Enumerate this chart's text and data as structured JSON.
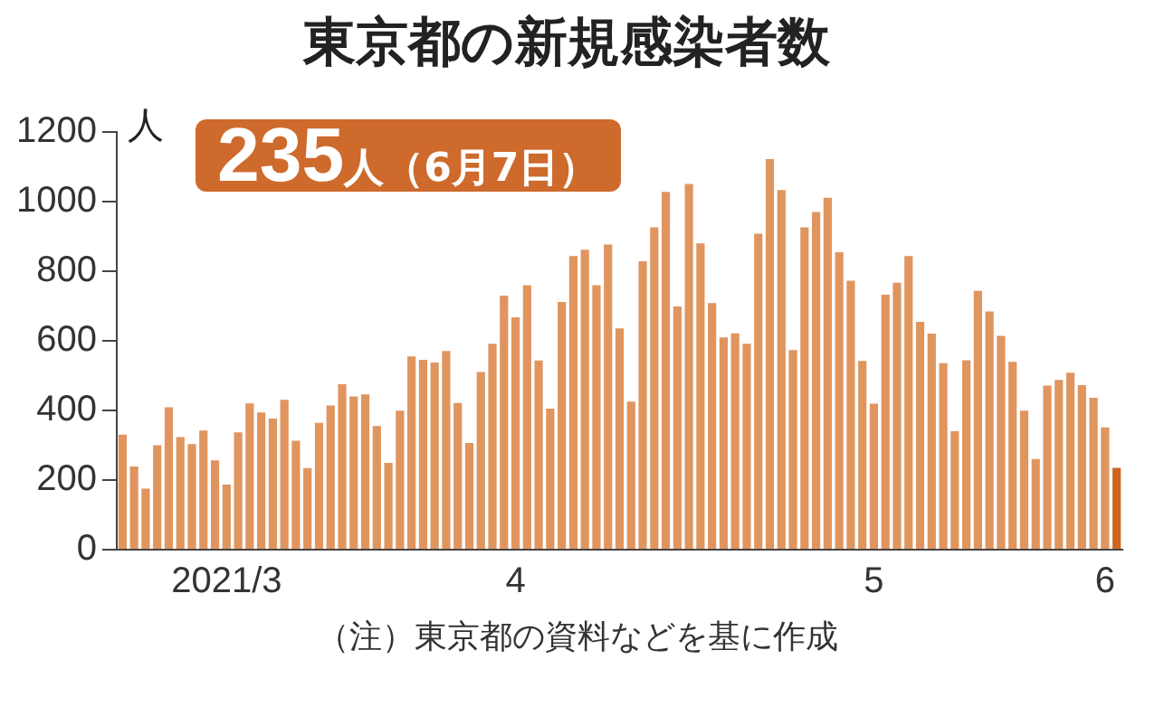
{
  "chart_data": {
    "type": "bar",
    "title": "東京都の新規感染者数",
    "ylabel": "人",
    "categories": [
      null,
      null,
      null,
      null,
      null,
      null,
      null,
      null,
      null,
      "2021/3",
      null,
      null,
      null,
      null,
      null,
      null,
      null,
      null,
      null,
      null,
      null,
      null,
      null,
      null,
      null,
      null,
      null,
      null,
      null,
      null,
      null,
      null,
      null,
      null,
      "4",
      null,
      null,
      null,
      null,
      null,
      null,
      null,
      null,
      null,
      null,
      null,
      null,
      null,
      null,
      null,
      null,
      null,
      null,
      null,
      null,
      null,
      null,
      null,
      null,
      null,
      null,
      null,
      null,
      null,
      null,
      "5",
      null,
      null,
      null,
      null,
      null,
      null,
      null,
      null,
      null,
      null,
      null,
      null,
      null,
      null,
      null,
      null,
      null,
      null,
      null,
      "6",
      null
    ],
    "values": [
      330,
      239,
      175,
      300,
      409,
      323,
      303,
      342,
      256,
      187,
      337,
      420,
      394,
      376,
      430,
      313,
      234,
      364,
      414,
      475,
      440,
      446,
      355,
      249,
      399,
      555,
      545,
      537,
      570,
      421,
      306,
      510,
      591,
      729,
      667,
      759,
      543,
      405,
      711,
      843,
      861,
      759,
      876,
      635,
      425,
      828,
      925,
      1027,
      698,
      1050,
      879,
      708,
      609,
      621,
      591,
      907,
      1121,
      1032,
      573,
      925,
      969,
      1010,
      854,
      772,
      542,
      419,
      732,
      766,
      843,
      654,
      620,
      535,
      340,
      544,
      743,
      684,
      614,
      539,
      399,
      260,
      471,
      487,
      508,
      472,
      436,
      351,
      235
    ],
    "colors": [
      "#e0955f",
      "#e0955f",
      "#e0955f",
      "#e0955f",
      "#e0955f",
      "#e0955f",
      "#e0955f",
      "#e0955f",
      "#e0955f",
      "#e0955f",
      "#e0955f",
      "#e0955f",
      "#e0955f",
      "#e0955f",
      "#e0955f",
      "#e0955f",
      "#e0955f",
      "#e0955f",
      "#e0955f",
      "#e0955f",
      "#e0955f",
      "#e0955f",
      "#e0955f",
      "#e0955f",
      "#e0955f",
      "#e0955f",
      "#e0955f",
      "#e0955f",
      "#e0955f",
      "#e0955f",
      "#e0955f",
      "#e0955f",
      "#e0955f",
      "#e0955f",
      "#e0955f",
      "#e0955f",
      "#e0955f",
      "#e0955f",
      "#e0955f",
      "#e0955f",
      "#e0955f",
      "#e0955f",
      "#e0955f",
      "#e0955f",
      "#e0955f",
      "#e0955f",
      "#e0955f",
      "#e0955f",
      "#e0955f",
      "#e0955f",
      "#e0955f",
      "#e0955f",
      "#e0955f",
      "#e0955f",
      "#e0955f",
      "#e0955f",
      "#e0955f",
      "#e0955f",
      "#e0955f",
      "#e0955f",
      "#e0955f",
      "#e0955f",
      "#e0955f",
      "#e0955f",
      "#e0955f",
      "#e0955f",
      "#e0955f",
      "#e0955f",
      "#e0955f",
      "#e0955f",
      "#e0955f",
      "#e0955f",
      "#e0955f",
      "#e0955f",
      "#e0955f",
      "#e0955f",
      "#e0955f",
      "#e0955f",
      "#e0955f",
      "#e0955f",
      "#e0955f",
      "#e0955f",
      "#e0955f",
      "#e0955f",
      "#e0955f",
      "#e0955f",
      "#d0651f"
    ],
    "ylim": [
      0,
      1200
    ],
    "yticks": [
      0,
      200,
      400,
      600,
      800,
      1000,
      1200
    ],
    "grid": false,
    "legend": false,
    "annotations": [
      "235人（6月7日）",
      "（注）東京都の資料などを基に作成"
    ]
  }
}
